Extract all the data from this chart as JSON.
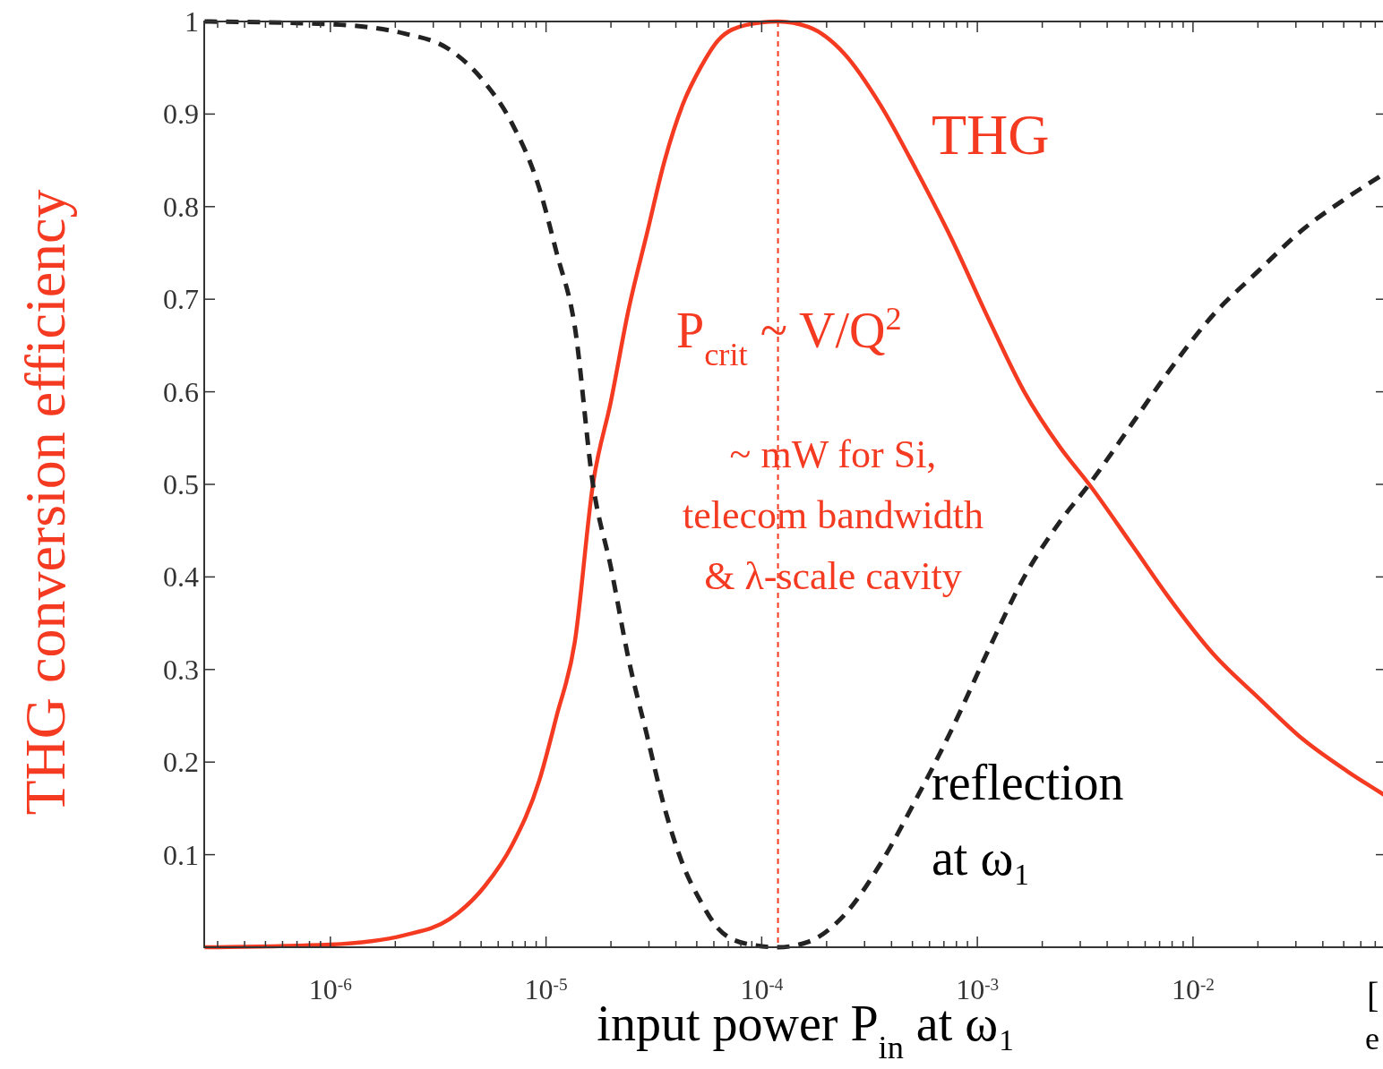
{
  "chart_data": {
    "type": "line",
    "xlabel": "input power P$_{in}$ at ω₁",
    "ylabel": "THG conversion efficiency",
    "log": "x",
    "xlim": [
      2.6e-07,
      0.079
    ],
    "ylim": [
      0,
      1
    ],
    "xticks": [
      {
        "value": 3e-07,
        "label": null
      },
      {
        "value": 4e-07,
        "label": null
      },
      {
        "value": 5e-07,
        "label": null
      },
      {
        "value": 6e-07,
        "label": null
      },
      {
        "value": 7e-07,
        "label": null
      },
      {
        "value": 8e-07,
        "label": null
      },
      {
        "value": 9e-07,
        "label": null
      },
      {
        "value": 1e-06,
        "label": "10$^{-6}$"
      },
      {
        "value": 2e-06,
        "label": null
      },
      {
        "value": 3e-06,
        "label": null
      },
      {
        "value": 4e-06,
        "label": null
      },
      {
        "value": 5e-06,
        "label": null
      },
      {
        "value": 6e-06,
        "label": null
      },
      {
        "value": 7e-06,
        "label": null
      },
      {
        "value": 8e-06,
        "label": null
      },
      {
        "value": 9e-06,
        "label": null
      },
      {
        "value": 1e-05,
        "label": "10$^{-5}$"
      },
      {
        "value": 2e-05,
        "label": null
      },
      {
        "value": 3e-05,
        "label": null
      },
      {
        "value": 4e-05,
        "label": null
      },
      {
        "value": 5e-05,
        "label": null
      },
      {
        "value": 6e-05,
        "label": null
      },
      {
        "value": 7e-05,
        "label": null
      },
      {
        "value": 8e-05,
        "label": null
      },
      {
        "value": 9e-05,
        "label": null
      },
      {
        "value": 0.0001,
        "label": "10$^{-4}$"
      },
      {
        "value": 0.0002,
        "label": null
      },
      {
        "value": 0.0003,
        "label": null
      },
      {
        "value": 0.0004,
        "label": null
      },
      {
        "value": 0.0005,
        "label": null
      },
      {
        "value": 0.0006,
        "label": null
      },
      {
        "value": 0.0007,
        "label": null
      },
      {
        "value": 0.0008,
        "label": null
      },
      {
        "value": 0.0009,
        "label": null
      },
      {
        "value": 0.001,
        "label": "10$^{-3}$"
      },
      {
        "value": 0.002,
        "label": null
      },
      {
        "value": 0.003,
        "label": null
      },
      {
        "value": 0.004,
        "label": null
      },
      {
        "value": 0.005,
        "label": null
      },
      {
        "value": 0.006,
        "label": null
      },
      {
        "value": 0.007,
        "label": null
      },
      {
        "value": 0.008,
        "label": null
      },
      {
        "value": 0.009,
        "label": null
      },
      {
        "value": 0.01,
        "label": "10$^{-2}$"
      },
      {
        "value": 0.02,
        "label": null
      },
      {
        "value": 0.03,
        "label": null
      },
      {
        "value": 0.04,
        "label": null
      },
      {
        "value": 0.05,
        "label": null
      },
      {
        "value": 0.06,
        "label": null
      },
      {
        "value": 0.07,
        "label": null
      }
    ],
    "yticks": [
      {
        "value": 0,
        "label": null
      },
      0.1,
      0.2,
      0.3,
      0.4,
      0.5,
      0.6,
      0.7,
      0.8,
      0.9,
      1
    ],
    "x": [
      2.61e-07,
      1e-06,
      2.2e-06,
      3.55e-06,
      5.2e-06,
      6.95e-06,
      9.3e-06,
      1.12e-05,
      1.36e-05,
      1.65e-05,
      2e-05,
      2.42e-05,
      2.93e-05,
      3.55e-05,
      4.3e-05,
      5.2e-05,
      6.3e-05,
      8.4e-05,
      0.000119,
      0.000165,
      0.000242,
      0.000355,
      0.00052,
      0.00076,
      0.00112,
      0.00165,
      0.00242,
      0.0033,
      0.0052,
      0.0076,
      0.0124,
      0.02,
      0.0322,
      0.052,
      0.079
    ],
    "series": [
      {
        "name": "THG",
        "color": "#f53a22",
        "line_style": "solid",
        "values": [
          0,
          0.003,
          0.013,
          0.03,
          0.066,
          0.11,
          0.18,
          0.25,
          0.33,
          0.5,
          0.59,
          0.69,
          0.77,
          0.85,
          0.91,
          0.95,
          0.98,
          0.996,
          1,
          0.994,
          0.965,
          0.91,
          0.84,
          0.765,
          0.68,
          0.6,
          0.54,
          0.5,
          0.435,
          0.38,
          0.317,
          0.27,
          0.225,
          0.19,
          0.163
        ]
      },
      {
        "name": "reflection\nat ω₁",
        "color": "#222222",
        "line_style": "dashed",
        "values": [
          1,
          0.997,
          0.987,
          0.97,
          0.934,
          0.89,
          0.82,
          0.75,
          0.67,
          0.5,
          0.41,
          0.31,
          0.23,
          0.15,
          0.09,
          0.05,
          0.02,
          0.004,
          0,
          0.006,
          0.035,
          0.09,
          0.16,
          0.235,
          0.32,
          0.4,
          0.46,
          0.5,
          0.565,
          0.62,
          0.683,
          0.73,
          0.775,
          0.81,
          0.837
        ]
      }
    ],
    "ref_lines": [
      {
        "axis": "x",
        "value": 0.000119,
        "color": "#f53a22",
        "line_style": "dashed"
      }
    ],
    "annotations": [
      "P$_{crit}$ ~ V/Q$^{2}$",
      "~ mW for Si,\ntelecom bandwidth\n& λ-scale cavity",
      "[",
      "e"
    ]
  }
}
